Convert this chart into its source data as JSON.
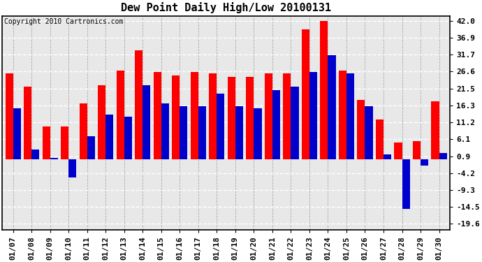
{
  "title": "Dew Point Daily High/Low 20100131",
  "copyright": "Copyright 2010 Cartronics.com",
  "dates": [
    "01/07",
    "01/08",
    "01/09",
    "01/10",
    "01/11",
    "01/12",
    "01/13",
    "01/14",
    "01/15",
    "01/16",
    "01/17",
    "01/18",
    "01/19",
    "01/20",
    "01/21",
    "01/22",
    "01/23",
    "01/24",
    "01/25",
    "01/26",
    "01/27",
    "01/28",
    "01/29",
    "01/30"
  ],
  "highs": [
    26.0,
    22.0,
    10.0,
    10.0,
    17.0,
    22.5,
    27.0,
    33.0,
    26.5,
    25.5,
    26.5,
    26.0,
    25.0,
    25.0,
    26.0,
    26.0,
    39.5,
    42.0,
    27.0,
    18.0,
    12.0,
    5.0,
    5.5,
    17.5
  ],
  "lows": [
    15.5,
    3.0,
    0.5,
    -5.5,
    7.0,
    13.5,
    13.0,
    22.5,
    17.0,
    16.0,
    16.0,
    20.0,
    16.0,
    15.5,
    21.0,
    22.0,
    26.5,
    31.5,
    26.0,
    16.0,
    1.5,
    -15.0,
    -2.0,
    2.0
  ],
  "bar_width": 0.42,
  "high_color": "#ff0000",
  "low_color": "#0000cc",
  "plot_bg_color": "#e8e8e8",
  "fig_bg_color": "#ffffff",
  "grid_color": "#aaaaaa",
  "yticks": [
    42.0,
    36.9,
    31.7,
    26.6,
    21.5,
    16.3,
    11.2,
    6.1,
    0.9,
    -4.2,
    -9.3,
    -14.5,
    -19.6
  ],
  "ylim": [
    -21.5,
    43.5
  ],
  "title_fontsize": 11,
  "tick_fontsize": 8,
  "copyright_fontsize": 7
}
